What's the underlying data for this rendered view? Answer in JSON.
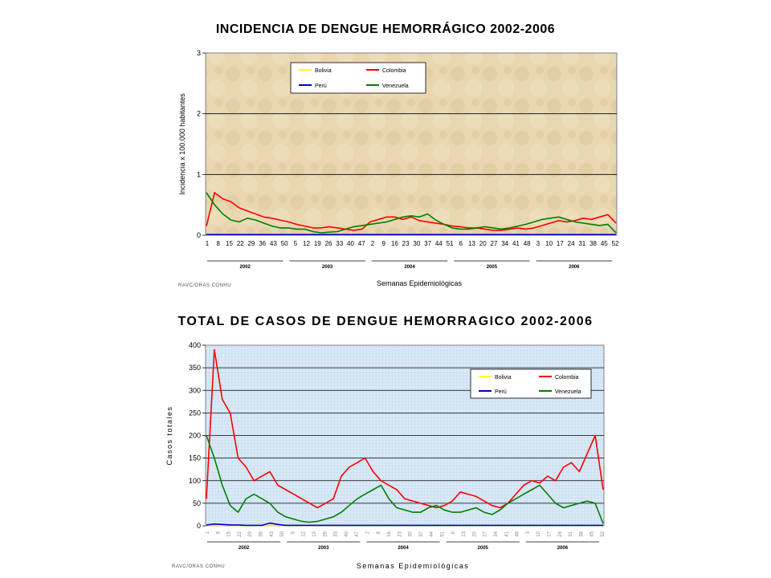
{
  "chart_data": [
    {
      "type": "line",
      "title": "INCIDENCIA DE DENGUE HEMORRÁGICO 2002-2006",
      "xlabel": "Semanas Epidemiológicas",
      "ylabel": "Incidencia x 100.000 habitantes",
      "ylim": [
        0,
        3
      ],
      "yticks": [
        "0",
        "1",
        "2",
        "3"
      ],
      "xticks": [
        "1",
        "8",
        "15",
        "22",
        "29",
        "36",
        "43",
        "50",
        "5",
        "12",
        "19",
        "26",
        "33",
        "40",
        "47",
        "2",
        "9",
        "16",
        "23",
        "30",
        "37",
        "44",
        "51",
        "6",
        "13",
        "20",
        "27",
        "34",
        "41",
        "48",
        "3",
        "10",
        "17",
        "24",
        "31",
        "38",
        "45",
        "52"
      ],
      "years": [
        "2002",
        "2003",
        "2004",
        "2005",
        "2006"
      ],
      "credit": "RAVC/ORAS CONHU",
      "grid": true,
      "legend_position": "top-center",
      "series": [
        {
          "name": "Bolivia",
          "color": "#ffff00",
          "values": [
            0.01,
            0.01,
            0.01,
            0.01,
            0.01,
            0.01,
            0.01,
            0.01,
            0.01,
            0.01,
            0.01,
            0.01,
            0.01,
            0.01,
            0.01,
            0.01,
            0.01,
            0.01,
            0.01,
            0.01,
            0.01,
            0.01,
            0.01,
            0.01,
            0.01,
            0.01,
            0.01,
            0.01,
            0.01,
            0.01,
            0.01,
            0.01,
            0.01,
            0.01,
            0.01,
            0.01,
            0.01,
            0.01,
            0.01,
            0.01,
            0.01,
            0.01,
            0.01,
            0.01,
            0.01,
            0.01,
            0.01,
            0.01,
            0.01,
            0.01,
            0.01
          ]
        },
        {
          "name": "Colombia",
          "color": "#ff0000",
          "values": [
            0.15,
            0.7,
            0.6,
            0.55,
            0.45,
            0.4,
            0.35,
            0.3,
            0.28,
            0.25,
            0.22,
            0.18,
            0.15,
            0.12,
            0.12,
            0.14,
            0.12,
            0.1,
            0.08,
            0.1,
            0.22,
            0.26,
            0.3,
            0.3,
            0.26,
            0.3,
            0.24,
            0.22,
            0.2,
            0.18,
            0.15,
            0.14,
            0.12,
            0.12,
            0.1,
            0.08,
            0.08,
            0.1,
            0.12,
            0.1,
            0.12,
            0.16,
            0.2,
            0.24,
            0.22,
            0.24,
            0.28,
            0.26,
            0.3,
            0.34,
            0.2
          ]
        },
        {
          "name": "Perú",
          "color": "#0000cc",
          "values": [
            0.01,
            0.01,
            0.01,
            0.01,
            0.01,
            0.01,
            0.01,
            0.01,
            0.01,
            0.01,
            0.01,
            0.01,
            0.01,
            0.01,
            0.01,
            0.01,
            0.01,
            0.01,
            0.01,
            0.01,
            0.01,
            0.01,
            0.01,
            0.01,
            0.01,
            0.01,
            0.01,
            0.01,
            0.01,
            0.01,
            0.01,
            0.01,
            0.01,
            0.01,
            0.01,
            0.01,
            0.01,
            0.01,
            0.01,
            0.01,
            0.01,
            0.01,
            0.01,
            0.01,
            0.01,
            0.01,
            0.01,
            0.01,
            0.01,
            0.01,
            0.01
          ]
        },
        {
          "name": "Venezuela",
          "color": "#008000",
          "values": [
            0.7,
            0.5,
            0.35,
            0.25,
            0.22,
            0.28,
            0.25,
            0.2,
            0.15,
            0.12,
            0.12,
            0.1,
            0.1,
            0.06,
            0.04,
            0.05,
            0.06,
            0.1,
            0.14,
            0.16,
            0.18,
            0.2,
            0.22,
            0.26,
            0.3,
            0.32,
            0.3,
            0.35,
            0.25,
            0.18,
            0.12,
            0.1,
            0.1,
            0.12,
            0.14,
            0.12,
            0.1,
            0.12,
            0.15,
            0.18,
            0.22,
            0.26,
            0.28,
            0.3,
            0.26,
            0.22,
            0.2,
            0.18,
            0.16,
            0.18,
            0.04
          ]
        }
      ]
    },
    {
      "type": "line",
      "title": "TOTAL DE CASOS DE DENGUE HEMORRAGICO 2002-2006",
      "xlabel": "Semanas Epidemiológicas",
      "ylabel": "Casos totales",
      "ylim": [
        0,
        400
      ],
      "yticks": [
        "0",
        "50",
        "100",
        "150",
        "200",
        "250",
        "300",
        "350",
        "400"
      ],
      "xticks": [
        "1",
        "8",
        "15",
        "22",
        "29",
        "36",
        "43",
        "50",
        "5",
        "12",
        "19",
        "26",
        "33",
        "40",
        "47",
        "2",
        "9",
        "16",
        "23",
        "30",
        "37",
        "44",
        "51",
        "6",
        "13",
        "20",
        "27",
        "34",
        "41",
        "48",
        "3",
        "10",
        "17",
        "24",
        "31",
        "38",
        "45",
        "52"
      ],
      "years": [
        "2002",
        "2003",
        "2004",
        "2005",
        "2006"
      ],
      "credit": "RAVC/ORAS CONHU",
      "grid": true,
      "legend_position": "top-right",
      "series": [
        {
          "name": "Bolivia",
          "color": "#ffff00",
          "values": [
            1,
            1,
            1,
            1,
            1,
            1,
            1,
            1,
            1,
            1,
            1,
            1,
            1,
            1,
            1,
            1,
            1,
            1,
            1,
            1,
            1,
            1,
            1,
            1,
            1,
            1,
            1,
            1,
            1,
            1,
            1,
            1,
            1,
            1,
            1,
            1,
            1,
            1,
            1,
            1,
            1,
            1,
            1,
            1,
            1,
            1,
            1,
            1,
            1,
            1,
            1
          ]
        },
        {
          "name": "Colombia",
          "color": "#ff0000",
          "values": [
            60,
            390,
            280,
            250,
            150,
            130,
            100,
            110,
            120,
            90,
            80,
            70,
            60,
            50,
            40,
            50,
            60,
            110,
            130,
            140,
            150,
            120,
            100,
            90,
            80,
            60,
            55,
            50,
            45,
            40,
            45,
            55,
            75,
            70,
            65,
            55,
            45,
            40,
            50,
            70,
            90,
            100,
            95,
            110,
            100,
            130,
            140,
            120,
            160,
            200,
            80
          ]
        },
        {
          "name": "Perú",
          "color": "#0000cc",
          "values": [
            2,
            4,
            3,
            2,
            2,
            1,
            1,
            1,
            6,
            3,
            1,
            1,
            1,
            1,
            1,
            1,
            1,
            1,
            1,
            1,
            1,
            1,
            1,
            1,
            1,
            1,
            1,
            1,
            1,
            1,
            1,
            1,
            1,
            1,
            1,
            1,
            1,
            1,
            1,
            1,
            1,
            1,
            1,
            1,
            1,
            1,
            1,
            1,
            1,
            1,
            1
          ]
        },
        {
          "name": "Venezuela",
          "color": "#008000",
          "values": [
            200,
            150,
            90,
            45,
            30,
            60,
            70,
            60,
            50,
            30,
            20,
            15,
            10,
            8,
            10,
            15,
            20,
            30,
            45,
            60,
            70,
            80,
            90,
            60,
            40,
            35,
            30,
            30,
            40,
            45,
            35,
            30,
            30,
            35,
            40,
            30,
            25,
            35,
            50,
            60,
            70,
            80,
            90,
            70,
            50,
            40,
            45,
            50,
            55,
            50,
            5
          ]
        }
      ]
    }
  ]
}
